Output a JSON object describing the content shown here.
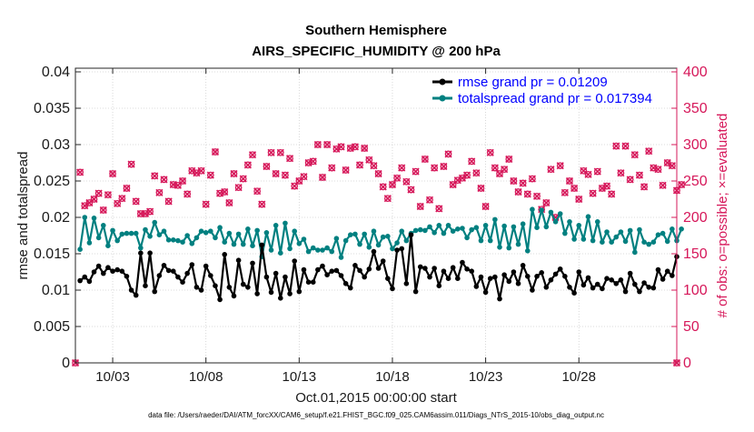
{
  "chart_data": {
    "type": "line",
    "title": "Southern Hemisphere",
    "subtitle": "AIRS_SPECIFIC_HUMIDITY @ 200 hPa",
    "xlabel": "Oct.01,2015 00:00:00 start",
    "ylabel": "rmse and totalspread",
    "y2label": "# of obs: o=possible; ×=evaluated",
    "footnote": "data file: /Users/raeder/DAI/ATM_forcXX/CAM6_setup/f.e21.FHIST_BGC.f09_025.CAM6assim.011/Diags_NTrS_2015-10/obs_diag_output.nc",
    "xlim": [
      1.0,
      33.25
    ],
    "ylim": [
      0,
      0.0405
    ],
    "y2lim": [
      0,
      405
    ],
    "x_tick_labels": [
      "10/03",
      "10/08",
      "10/13",
      "10/18",
      "10/23",
      "10/28"
    ],
    "x_tick_values": [
      3,
      8,
      13,
      18,
      23,
      28
    ],
    "y_tick_labels": [
      "0",
      "0.005",
      "0.01",
      "0.015",
      "0.02",
      "0.025",
      "0.03",
      "0.035",
      "0.04"
    ],
    "y_tick_values": [
      0,
      0.005,
      0.01,
      0.015,
      0.02,
      0.025,
      0.03,
      0.035,
      0.04
    ],
    "y2_tick_labels": [
      "0",
      "50",
      "100",
      "150",
      "200",
      "250",
      "300",
      "350",
      "400"
    ],
    "y2_tick_values": [
      0,
      50,
      100,
      150,
      200,
      250,
      300,
      350,
      400
    ],
    "grid": true,
    "legend_position": "top-right",
    "x_start": 1.25,
    "x_step": 0.25,
    "series": [
      {
        "name": "rmse grand pr = 0.01209",
        "color": "#000000",
        "axis": "left",
        "values": [
          0.0113,
          0.0118,
          0.0112,
          0.0125,
          0.0133,
          0.0123,
          0.0131,
          0.0126,
          0.0128,
          0.0126,
          0.0119,
          0.01,
          0.0093,
          0.0151,
          0.0106,
          0.0151,
          0.0098,
          0.012,
          0.0134,
          0.0127,
          0.0126,
          0.0118,
          0.0111,
          0.0123,
          0.0135,
          0.0104,
          0.01,
          0.0133,
          0.012,
          0.0106,
          0.0087,
          0.0149,
          0.0104,
          0.0092,
          0.0141,
          0.0108,
          0.0104,
          0.0137,
          0.0095,
          0.0162,
          0.0118,
          0.0097,
          0.0123,
          0.0089,
          0.0118,
          0.0095,
          0.014,
          0.0098,
          0.0128,
          0.0111,
          0.0111,
          0.0128,
          0.0133,
          0.0121,
          0.0126,
          0.0127,
          0.012,
          0.0109,
          0.0103,
          0.0134,
          0.0127,
          0.0118,
          0.0129,
          0.0153,
          0.013,
          0.014,
          0.0116,
          0.0102,
          0.0155,
          0.0157,
          0.0109,
          0.0176,
          0.0098,
          0.0132,
          0.013,
          0.0118,
          0.013,
          0.0106,
          0.0126,
          0.0116,
          0.0131,
          0.0116,
          0.0138,
          0.0129,
          0.0126,
          0.0105,
          0.0118,
          0.0097,
          0.0116,
          0.0118,
          0.0088,
          0.0121,
          0.0112,
          0.0125,
          0.0109,
          0.0134,
          0.0119,
          0.01,
          0.0119,
          0.0124,
          0.0104,
          0.0114,
          0.0122,
          0.0129,
          0.0119,
          0.0104,
          0.0096,
          0.0125,
          0.0107,
          0.0117,
          0.0103,
          0.0108,
          0.0102,
          0.0116,
          0.0114,
          0.0109,
          0.0114,
          0.0098,
          0.0123,
          0.0108,
          0.0098,
          0.011,
          0.0104,
          0.0103,
          0.0128,
          0.0115,
          0.0126,
          0.012,
          0.0146
        ]
      },
      {
        "name": "totalspread grand pr = 0.017394",
        "color": "#008080",
        "axis": "left",
        "values": [
          0.0156,
          0.02,
          0.0165,
          0.0199,
          0.0172,
          0.0189,
          0.0161,
          0.0182,
          0.0168,
          0.0177,
          0.0178,
          0.0178,
          0.0178,
          0.0158,
          0.0183,
          0.0174,
          0.0193,
          0.0176,
          0.0181,
          0.0169,
          0.0169,
          0.0168,
          0.0166,
          0.0175,
          0.0164,
          0.0172,
          0.0181,
          0.0179,
          0.0181,
          0.0172,
          0.0186,
          0.0166,
          0.0178,
          0.0163,
          0.0177,
          0.0163,
          0.0184,
          0.0161,
          0.0182,
          0.0146,
          0.0179,
          0.0155,
          0.0189,
          0.0151,
          0.0192,
          0.0157,
          0.0181,
          0.0164,
          0.017,
          0.0153,
          0.0158,
          0.0155,
          0.0155,
          0.0158,
          0.0153,
          0.0171,
          0.0145,
          0.0168,
          0.0176,
          0.0177,
          0.0163,
          0.0177,
          0.0159,
          0.0181,
          0.0162,
          0.0173,
          0.0174,
          0.0157,
          0.0165,
          0.0181,
          0.0168,
          0.0178,
          0.0182,
          0.0183,
          0.0182,
          0.0187,
          0.0179,
          0.0189,
          0.0178,
          0.0189,
          0.0181,
          0.0184,
          0.0185,
          0.0172,
          0.0183,
          0.0186,
          0.0168,
          0.0189,
          0.0168,
          0.0197,
          0.0159,
          0.0188,
          0.0158,
          0.0187,
          0.0163,
          0.0191,
          0.0154,
          0.0211,
          0.0186,
          0.021,
          0.0187,
          0.0207,
          0.0194,
          0.0205,
          0.0178,
          0.0194,
          0.017,
          0.0189,
          0.017,
          0.0201,
          0.0168,
          0.0194,
          0.0166,
          0.018,
          0.0166,
          0.0173,
          0.018,
          0.0167,
          0.0182,
          0.0152,
          0.0183,
          0.0166,
          0.0163,
          0.0166,
          0.0176,
          0.0178,
          0.0167,
          0.0184,
          0.0168,
          0.0184
        ]
      },
      {
        "name": "obs possible / evaluated",
        "color": "#d6185a",
        "axis": "right",
        "marker": "o/x",
        "values": [
          262,
          216,
          220,
          225,
          233,
          210,
          231,
          260,
          219,
          226,
          240,
          273,
          222,
          205,
          205,
          208,
          257,
          234,
          252,
          222,
          245,
          244,
          250,
          232,
          264,
          261,
          264,
          218,
          258,
          290,
          233,
          235,
          220,
          260,
          241,
          253,
          272,
          286,
          236,
          218,
          270,
          289,
          260,
          289,
          258,
          281,
          243,
          250,
          256,
          275,
          277,
          300,
          255,
          300,
          268,
          294,
          297,
          265,
          295,
          297,
          272,
          295,
          279,
          271,
          260,
          242,
          226,
          245,
          254,
          268,
          249,
          238,
          263,
          215,
          280,
          224,
          268,
          212,
          270,
          287,
          245,
          251,
          254,
          258,
          277,
          261,
          240,
          215,
          289,
          268,
          260,
          266,
          280,
          250,
          235,
          247,
          232,
          253,
          229,
          211,
          220,
          266,
          200,
          271,
          234,
          250,
          240,
          225,
          264,
          259,
          233,
          263,
          240,
          243,
          232,
          298,
          261,
          298,
          252,
          286,
          258,
          242,
          291,
          268,
          266,
          244,
          275,
          271,
          237,
          245
        ]
      }
    ]
  }
}
